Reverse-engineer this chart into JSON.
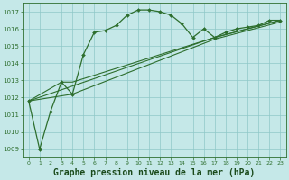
{
  "background_color": "#c5e8e8",
  "grid_color": "#8fc8c8",
  "line_color": "#2d6e2d",
  "marker_color": "#2d6e2d",
  "xlabel": "Graphe pression niveau de la mer (hPa)",
  "xlabel_fontsize": 7,
  "xlabel_color": "#1a4a1a",
  "ytick_color": "#2d6e2d",
  "xtick_color": "#2d6e2d",
  "ylim": [
    1008.5,
    1017.5
  ],
  "yticks": [
    1009,
    1010,
    1011,
    1012,
    1013,
    1014,
    1015,
    1016,
    1017
  ],
  "xlim": [
    -0.5,
    23.5
  ],
  "xticks": [
    0,
    1,
    2,
    3,
    4,
    5,
    6,
    7,
    8,
    9,
    10,
    11,
    12,
    13,
    14,
    15,
    16,
    17,
    18,
    19,
    20,
    21,
    22,
    23
  ],
  "main_x": [
    0,
    1,
    2,
    3,
    4,
    5,
    6,
    7,
    8,
    9,
    10,
    11,
    12,
    13,
    14,
    15,
    16,
    17,
    18,
    19,
    20,
    21,
    22,
    23
  ],
  "main_y": [
    1011.8,
    1009.0,
    1011.2,
    1012.9,
    1012.2,
    1014.5,
    1015.8,
    1015.9,
    1016.2,
    1016.8,
    1017.1,
    1017.1,
    1017.0,
    1016.8,
    1016.3,
    1015.5,
    1016.0,
    1015.5,
    1015.8,
    1016.0,
    1016.1,
    1016.2,
    1016.5,
    1016.5
  ],
  "line2_x": [
    0,
    3,
    4,
    17,
    23
  ],
  "line2_y": [
    1011.8,
    1012.9,
    1013.0,
    1015.5,
    1016.5
  ],
  "line3_x": [
    0,
    4,
    17,
    23
  ],
  "line3_y": [
    1011.8,
    1012.2,
    1015.5,
    1016.5
  ],
  "line4_x": [
    0,
    3,
    17,
    23
  ],
  "line4_y": [
    1011.8,
    1013.0,
    1015.5,
    1016.5
  ]
}
